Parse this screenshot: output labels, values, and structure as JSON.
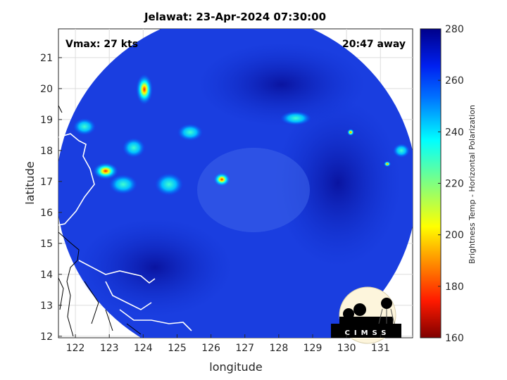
{
  "title": "Jelawat: 23-Apr-2024 07:30:00",
  "annotations": {
    "vmax": "Vmax: 27 kts",
    "time_away": "20:47 away"
  },
  "axes": {
    "xlabel": "longitude",
    "ylabel": "latitude",
    "xlim": [
      121.5,
      131.95
    ],
    "ylim": [
      11.95,
      21.93
    ],
    "xticks": [
      "122",
      "123",
      "124",
      "125",
      "126",
      "127",
      "128",
      "129",
      "130",
      "131"
    ],
    "yticks": [
      "12",
      "13",
      "14",
      "15",
      "16",
      "17",
      "18",
      "19",
      "20",
      "21"
    ]
  },
  "colorbar": {
    "label": "Brightness Temp - Horizontal Polarization",
    "range": [
      160,
      280
    ],
    "ticks": [
      "160",
      "180",
      "200",
      "220",
      "240",
      "260",
      "280"
    ],
    "colors": [
      "#7f0000",
      "#ff1a00",
      "#ffb000",
      "#ffff00",
      "#80ff80",
      "#00ffff",
      "#0080ff",
      "#0030ff",
      "#00008a"
    ]
  },
  "logo": {
    "text": "CIMSS"
  }
}
